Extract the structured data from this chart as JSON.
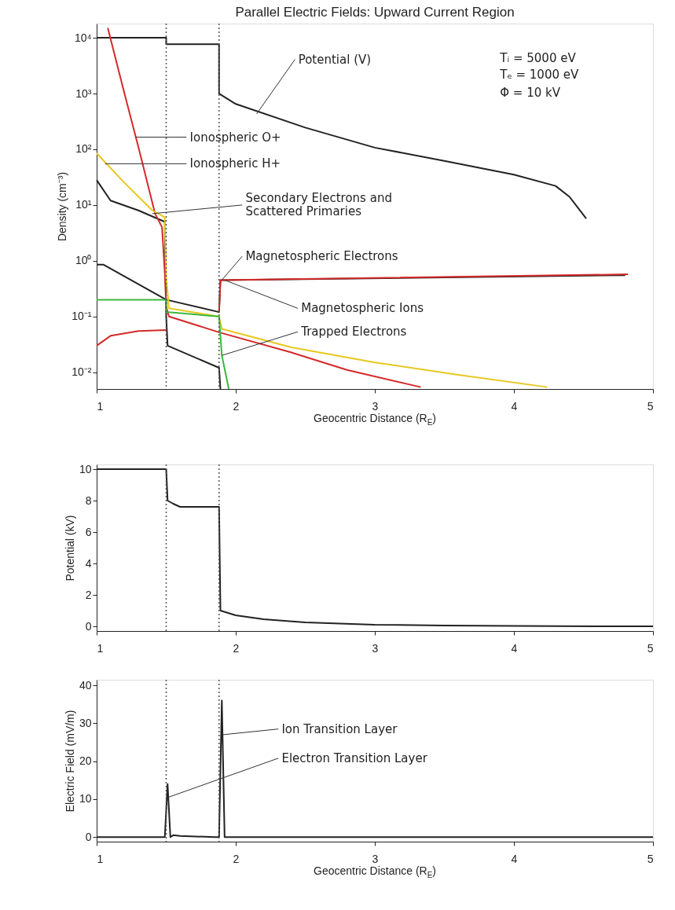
{
  "chart_data": [
    {
      "type": "line",
      "title": "Parallel Electric Fields: Upward Current Region",
      "xlabel": "Geocentric Distance (R$_{E}$)",
      "ylabel": "Density (cm⁻³)",
      "log": true,
      "grid": false,
      "xlim": [
        1,
        5
      ],
      "ylim": [
        0.005,
        18000
      ],
      "xticks": [
        1,
        2,
        3,
        4,
        5
      ],
      "yticks": [
        {
          "value": 0.01,
          "label": "10⁻²"
        },
        {
          "value": 0.1,
          "label": "10⁻¹"
        },
        {
          "value": 1,
          "label": "10⁰"
        },
        {
          "value": 10,
          "label": "10¹"
        },
        {
          "value": 100,
          "label": "10²"
        },
        {
          "value": 1000,
          "label": "10³"
        },
        {
          "value": 10000,
          "label": "10⁴"
        }
      ],
      "ref_lines": [
        {
          "axis": "x",
          "value": 1.5,
          "line_style": "dotted",
          "color": "#555555"
        },
        {
          "axis": "x",
          "value": 1.88,
          "line_style": "dotted",
          "color": "#555555"
        }
      ],
      "series": [
        {
          "color": "#222222",
          "x": [
            1,
            1.5,
            1.5,
            1.88,
            1.88,
            2,
            2.5,
            3,
            3.5,
            4,
            4.3,
            4.4,
            4.52
          ],
          "values": [
            10000,
            10000,
            7700,
            7700,
            1000,
            650,
            245,
            107,
            62,
            35,
            22,
            14,
            5.7
          ]
        },
        {
          "color": "#222222",
          "x": [
            1,
            1.1,
            1.3,
            1.49,
            1.5,
            1.51,
            1.88,
            1.89
          ],
          "values": [
            28,
            12,
            8,
            5,
            0.1,
            0.03,
            0.012,
            0.005
          ]
        },
        {
          "color": "#222222",
          "x": [
            1,
            1.05,
            1.5,
            1.88,
            1.89,
            4.8
          ],
          "values": [
            0.85,
            0.85,
            0.2,
            0.12,
            0.45,
            0.55
          ]
        },
        {
          "color": "#d42a2a",
          "x": [
            1,
            1.1,
            1.3,
            1.5
          ],
          "values": [
            0.03,
            0.045,
            0.055,
            0.057
          ]
        },
        {
          "color": "#d42a2a",
          "x": [
            1.08,
            1.2,
            1.3,
            1.42,
            1.47,
            1.49,
            1.5,
            1.52,
            1.88,
            2.39,
            2.8,
            3.33
          ],
          "values": [
            15000,
            1000,
            110,
            7,
            4,
            0.6,
            0.15,
            0.1,
            0.052,
            0.023,
            0.011,
            0.0054
          ]
        },
        {
          "color": "#e8c81e",
          "x": [
            1,
            1.2,
            1.4,
            1.49,
            1.5,
            1.52,
            1.88,
            1.9,
            2.4,
            3,
            3.6,
            4.24
          ],
          "values": [
            85,
            25,
            8,
            6,
            0.5,
            0.14,
            0.1,
            0.06,
            0.028,
            0.015,
            0.009,
            0.0054
          ]
        },
        {
          "color": "#3cb83c",
          "x": [
            1,
            1.5,
            1.5,
            1.88,
            1.9,
            1.95
          ],
          "values": [
            0.2,
            0.2,
            0.12,
            0.1,
            0.02,
            0.005
          ]
        },
        {
          "color": "#d42a2a",
          "x": [
            1.88,
            1.89,
            4.82
          ],
          "values": [
            0.12,
            0.45,
            0.57
          ]
        }
      ],
      "annotations": [
        {
          "text": "Potential (V)",
          "x": 2.15,
          "y": 430
        },
        {
          "text": "Ionospheric O+",
          "x": 1.28,
          "y": 165
        },
        {
          "text": "Ionospheric H+",
          "x": 1.06,
          "y": 55
        },
        {
          "text": "Secondary Electrons and\nScattered Primaries",
          "x": 1.4,
          "y": 7
        },
        {
          "text": "Magnetospheric Electrons",
          "x": 1.9,
          "y": 0.45
        },
        {
          "text": "Magnetospheric Ions",
          "x": 1.92,
          "y": 0.45
        },
        {
          "text": "Trapped Electrons",
          "x": 1.9,
          "y": 0.02
        },
        "Tᵢ = 5000 eV",
        "Tₑ = 1000 eV",
        "Φ = 10 kV"
      ]
    },
    {
      "type": "line",
      "ylabel": "Potential (kV)",
      "grid": false,
      "xlim": [
        1,
        5
      ],
      "ylim": [
        -0.3,
        10.3
      ],
      "xticks": [
        1,
        2,
        3,
        4,
        5
      ],
      "yticks": [
        0,
        2,
        4,
        6,
        8,
        10
      ],
      "ref_lines": [
        {
          "axis": "x",
          "value": 1.5,
          "line_style": "dotted",
          "color": "#555555"
        },
        {
          "axis": "x",
          "value": 1.88,
          "line_style": "dotted",
          "color": "#555555"
        }
      ],
      "series": [
        {
          "color": "#222222",
          "x": [
            1,
            1.5,
            1.51,
            1.55,
            1.6,
            1.88,
            1.89,
            2,
            2.2,
            2.5,
            3,
            3.5,
            4,
            4.6,
            5
          ],
          "values": [
            10,
            10,
            8,
            7.8,
            7.6,
            7.6,
            1,
            0.7,
            0.45,
            0.25,
            0.1,
            0.05,
            0.03,
            0,
            0
          ]
        }
      ]
    },
    {
      "type": "line",
      "xlabel": "Geocentric Distance (R$_{E}$)",
      "ylabel": "Electric Field (mV/m)",
      "grid": false,
      "xlim": [
        1,
        5
      ],
      "ylim": [
        -1.2,
        41.5
      ],
      "xticks": [
        1,
        2,
        3,
        4,
        5
      ],
      "yticks": [
        0,
        10,
        20,
        30,
        40
      ],
      "ref_lines": [
        {
          "axis": "x",
          "value": 1.5,
          "line_style": "dotted",
          "color": "#555555"
        },
        {
          "axis": "x",
          "value": 1.88,
          "line_style": "dotted",
          "color": "#555555"
        }
      ],
      "series": [
        {
          "color": "#222222",
          "x": [
            1,
            1.49,
            1.51,
            1.53,
            1.55,
            1.6,
            1.85,
            1.88,
            1.9,
            1.92,
            5
          ],
          "values": [
            0,
            0,
            14,
            0,
            0.5,
            0.3,
            0,
            0,
            36,
            0,
            0
          ]
        }
      ],
      "annotations": [
        {
          "text": "Ion Transition Layer",
          "x": 1.905,
          "y": 27
        },
        {
          "text": "Electron Transition Layer",
          "x": 1.515,
          "y": 10.5
        }
      ]
    }
  ]
}
